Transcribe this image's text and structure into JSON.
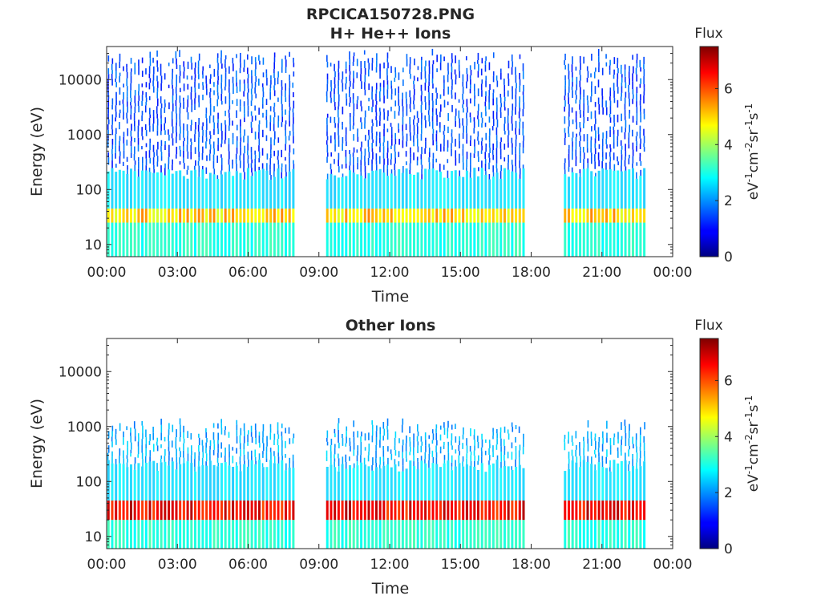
{
  "figure": {
    "title_line1": "RPCICA150728.PNG"
  },
  "chart_data": [
    {
      "type": "heatmap",
      "title": "H+ He++ Ions",
      "xlabel": "Time",
      "ylabel": "Energy (eV)",
      "x_ticks": [
        "00:00",
        "03:00",
        "06:00",
        "09:00",
        "12:00",
        "15:00",
        "18:00",
        "21:00",
        "00:00"
      ],
      "x_range_hours": [
        0,
        24
      ],
      "y_scale": "log",
      "y_range_eV": [
        6,
        40000
      ],
      "y_ticks": [
        10,
        100,
        1000,
        10000
      ],
      "y_tick_labels": [
        "10",
        "100",
        "1000",
        "10000"
      ],
      "colormap": "jet",
      "colorbar": {
        "title": "Flux",
        "unit_base": "eV",
        "unit_exp1": "-1",
        "unit_cm": "cm",
        "unit_exp2": "-2",
        "unit_sr": "sr",
        "unit_exp3": "-1",
        "unit_s": "s",
        "unit_exp4": "-1",
        "range": [
          0,
          7.5
        ],
        "ticks": [
          0,
          2,
          4,
          6
        ],
        "tick_labels": [
          "0",
          "2",
          "4",
          "6"
        ]
      },
      "data_gaps_hours": [
        [
          8.05,
          9.35
        ],
        [
          17.7,
          19.3
        ],
        [
          22.95,
          24
        ]
      ],
      "band": {
        "low_eV": 25,
        "high_eV": 45,
        "level": 5.2
      },
      "high_energy_level": 1.5,
      "max_energy_eV": 25000
    },
    {
      "type": "heatmap",
      "title": "Other Ions",
      "xlabel": "Time",
      "ylabel": "Energy (eV)",
      "x_ticks": [
        "00:00",
        "03:00",
        "06:00",
        "09:00",
        "12:00",
        "15:00",
        "18:00",
        "21:00",
        "00:00"
      ],
      "x_range_hours": [
        0,
        24
      ],
      "y_scale": "log",
      "y_range_eV": [
        6,
        40000
      ],
      "y_ticks": [
        10,
        100,
        1000,
        10000
      ],
      "y_tick_labels": [
        "10",
        "100",
        "1000",
        "10000"
      ],
      "colormap": "jet",
      "colorbar": {
        "title": "Flux",
        "unit_base": "eV",
        "unit_exp1": "-1",
        "unit_cm": "cm",
        "unit_exp2": "-2",
        "unit_sr": "sr",
        "unit_exp3": "-1",
        "unit_s": "s",
        "unit_exp4": "-1",
        "range": [
          0,
          7.5
        ],
        "ticks": [
          0,
          2,
          4,
          6
        ],
        "tick_labels": [
          "0",
          "2",
          "4",
          "6"
        ]
      },
      "data_gaps_hours": [
        [
          8.05,
          9.35
        ],
        [
          17.7,
          19.3
        ],
        [
          22.95,
          24
        ]
      ],
      "band": {
        "low_eV": 20,
        "high_eV": 45,
        "level": 6.8
      },
      "high_energy_level": 2.2,
      "max_energy_eV": 1000
    }
  ]
}
